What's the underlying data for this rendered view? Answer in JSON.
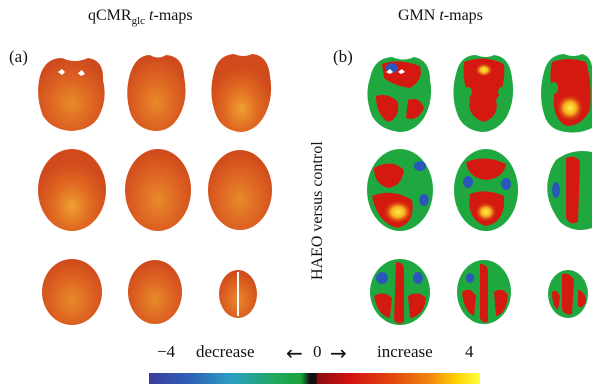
{
  "titles": {
    "left_main": "qCMR",
    "left_sub": "glc",
    "left_italic": "t",
    "left_suffix": "-maps",
    "right_main": "GMN ",
    "right_italic": "t",
    "right_suffix": "-maps"
  },
  "panels": {
    "a": "(a)",
    "b": "(b)"
  },
  "side_label": "HAEO versus control",
  "scale": {
    "min": "−4",
    "decrease": "decrease",
    "arrow_left": "←",
    "zero": "0",
    "arrow_right": "→",
    "increase": "increase",
    "max": "4"
  },
  "colors": {
    "decrease_end": "#3a3d9a",
    "neutral": "#18a33a",
    "zero": "#111111",
    "increase_start": "#d11010",
    "increase_end": "#ffff40"
  }
}
